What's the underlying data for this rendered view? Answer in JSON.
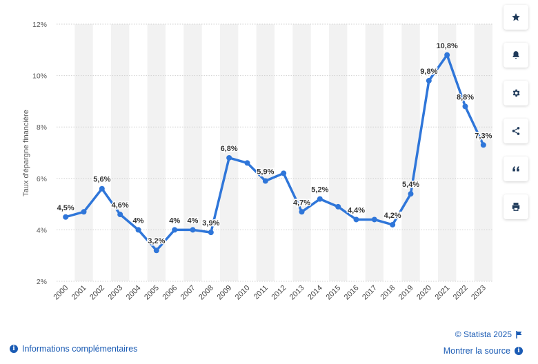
{
  "chart_data": {
    "type": "line",
    "ylabel": "Taux d'épargne financière",
    "ylim": [
      2,
      12
    ],
    "yticks": [
      2,
      4,
      6,
      8,
      10,
      12
    ],
    "ytick_labels": [
      "2%",
      "4%",
      "6%",
      "8%",
      "10%",
      "12%"
    ],
    "categories": [
      "2000",
      "2001",
      "2002",
      "2003",
      "2004",
      "2005",
      "2006",
      "2007",
      "2008",
      "2009",
      "2010",
      "2011",
      "2012",
      "2013",
      "2014",
      "2015",
      "2016",
      "2017",
      "2018",
      "2019",
      "2020",
      "2021",
      "2022",
      "2023"
    ],
    "series": [
      {
        "values": [
          4.5,
          4.7,
          5.6,
          4.6,
          4.0,
          3.2,
          4.0,
          4.0,
          3.9,
          6.8,
          6.6,
          5.9,
          6.2,
          4.7,
          5.2,
          4.9,
          4.4,
          4.4,
          4.2,
          5.4,
          9.8,
          10.8,
          8.8,
          7.3
        ],
        "data_labels": [
          "4,5%",
          "",
          "5,6%",
          "4,6%",
          "4%",
          "3,2%",
          "4%",
          "4%",
          "3,9%",
          "6,8%",
          "",
          "5,9%",
          "",
          "4,7%",
          "5,2%",
          "",
          "4,4%",
          "",
          "4,2%",
          "5,4%",
          "9,8%",
          "10,8%",
          "8,8%",
          "7,3%"
        ]
      }
    ],
    "colors": {
      "line": "#2f76d9",
      "band": "#f2f2f2",
      "grid": "#d0d0d0"
    },
    "grid": true
  },
  "toolbar": {
    "buttons": [
      "star-icon",
      "bell-icon",
      "gear-icon",
      "share-icon",
      "quote-icon",
      "print-icon"
    ]
  },
  "footer": {
    "credits": "© Statista 2025",
    "info_label": "Informations complémentaires",
    "source_label": "Montrer la source"
  }
}
